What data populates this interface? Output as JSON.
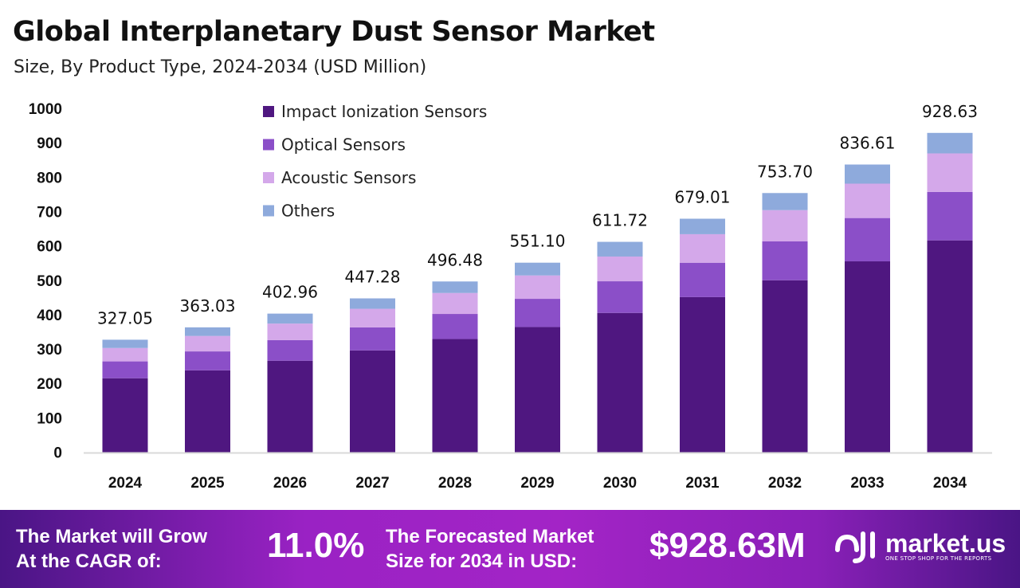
{
  "chart_data": {
    "type": "bar",
    "stacked": true,
    "title": "Global Interplanetary Dust Sensor Market",
    "subtitle": "Size, By Product Type, 2024-2034 (USD Million)",
    "xlabel": "",
    "ylabel": "",
    "ylim": [
      0,
      1000
    ],
    "yticks": [
      0,
      100,
      200,
      300,
      400,
      500,
      600,
      700,
      800,
      900,
      1000
    ],
    "grid": false,
    "legend_position": "top-left",
    "categories": [
      "2024",
      "2025",
      "2026",
      "2027",
      "2028",
      "2029",
      "2030",
      "2031",
      "2032",
      "2033",
      "2034"
    ],
    "series": [
      {
        "name": "Impact Ionization Sensors",
        "color": "#4f1780",
        "values": [
          215,
          238,
          266,
          296,
          329,
          364,
          405,
          451,
          500,
          555,
          616
        ]
      },
      {
        "name": "Optical Sensors",
        "color": "#8b4fc8",
        "values": [
          49,
          55,
          60,
          67,
          73,
          82,
          92,
          100,
          113,
          126,
          141
        ]
      },
      {
        "name": "Acoustic Sensors",
        "color": "#d4a8ea",
        "values": [
          39,
          45,
          48,
          54,
          61,
          68,
          72,
          83,
          91,
          100,
          112
        ]
      },
      {
        "name": "Others",
        "color": "#8eaadc",
        "values": [
          24.05,
          25.03,
          28.96,
          30.28,
          33.48,
          37.1,
          42.72,
          45.01,
          49.7,
          55.61,
          59.63
        ]
      }
    ],
    "totals": [
      "327.05",
      "363.03",
      "402.96",
      "447.28",
      "496.48",
      "551.10",
      "611.72",
      "679.01",
      "753.70",
      "836.61",
      "928.63"
    ]
  },
  "footer": {
    "cagr_label_line1": "The Market will Grow",
    "cagr_label_line2": "At the CAGR of:",
    "cagr_value": "11.0%",
    "forecast_label_line1": "The Forecasted Market",
    "forecast_label_line2": "Size for 2034 in USD:",
    "forecast_value": "$928.63M",
    "brand": "market.us",
    "brand_tagline": "ONE STOP SHOP FOR THE REPORTS"
  }
}
